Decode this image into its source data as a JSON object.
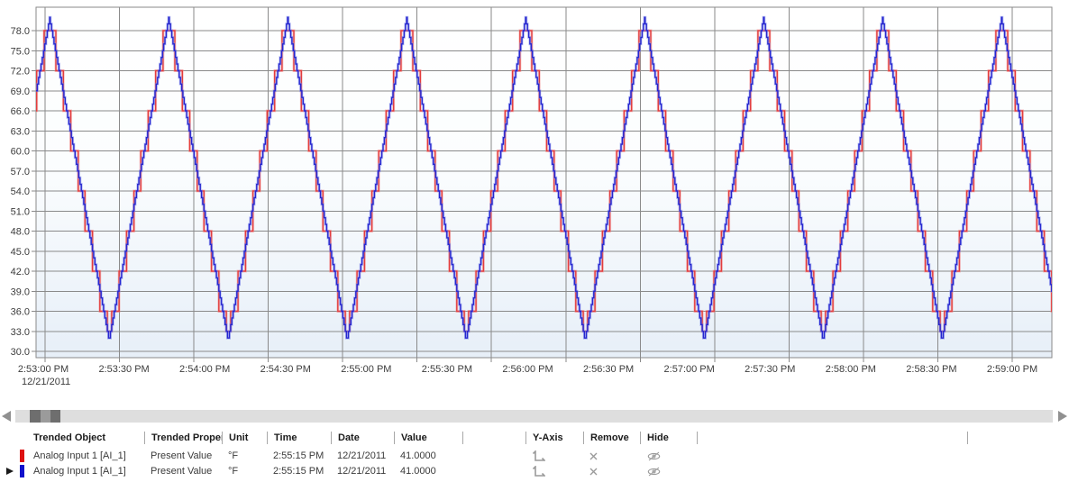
{
  "chart_data": {
    "type": "line",
    "title": "",
    "x_tick_labels": [
      "2:53:00 PM",
      "2:53:30 PM",
      "2:54:00 PM",
      "2:54:30 PM",
      "2:55:00 PM",
      "2:55:30 PM",
      "2:56:00 PM",
      "2:56:30 PM",
      "2:57:00 PM",
      "2:57:30 PM",
      "2:58:00 PM",
      "2:58:30 PM",
      "2:59:00 PM"
    ],
    "x_date_label": "12/21/2011",
    "y_tick_labels": [
      "78.0",
      "75.0",
      "72.0",
      "69.0",
      "66.0",
      "63.0",
      "60.0",
      "57.0",
      "54.0",
      "51.0",
      "48.0",
      "45.0",
      "42.0",
      "39.0",
      "36.0",
      "33.0",
      "30.0"
    ],
    "y_min": 30,
    "y_max": 78,
    "y_step": 3,
    "x_start_time": "2:52:56 PM",
    "x_seconds_span": 410,
    "x_gridline_interval_seconds": 30,
    "grid": true,
    "legend_position": "table-below",
    "plot_bg_top": "#ffffff",
    "plot_bg_bottom": "#e7eff8",
    "gridline_color": "#8a8a8a",
    "axis_text_color": "#3c3c3c",
    "series": [
      {
        "name": "Analog Input 1 [AI_1]",
        "property": "Present Value",
        "unit": "°F",
        "color": "#e23d3d",
        "halo_color": "rgba(244,135,135,0.45)",
        "waveform": "triangle-staircase",
        "min_value": 31,
        "max_value": 80,
        "period_seconds": 48,
        "first_peak_offset_seconds": 5.5,
        "quantize_step": 6,
        "display_min": 33,
        "display_max": 78
      },
      {
        "name": "Analog Input 1 [AI_1]",
        "property": "Present Value",
        "unit": "°F",
        "color": "#2626cf",
        "halo_color": "rgba(128,140,238,0.5)",
        "waveform": "triangle-staircase",
        "min_value": 31.5,
        "max_value": 80,
        "period_seconds": 48,
        "first_peak_offset_seconds": 5.5,
        "quantize_step": 1,
        "display_min": 31.5,
        "display_max": 80
      }
    ]
  },
  "table": {
    "headers": {
      "object": "Trended Object",
      "property": "Trended Property",
      "unit": "Unit",
      "time": "Time",
      "date": "Date",
      "value": "Value",
      "y_axis": "Y-Axis",
      "remove": "Remove",
      "hide": "Hide"
    },
    "rows": [
      {
        "series_color": "#dd1111",
        "selected": false,
        "object": "Analog Input 1 [AI_1]",
        "property": "Present Value",
        "unit": "°F",
        "time": "2:55:15 PM",
        "date": "12/21/2011",
        "value": "41.0000"
      },
      {
        "series_color": "#1111cc",
        "selected": true,
        "object": "Analog Input 1 [AI_1]",
        "property": "Present Value",
        "unit": "°F",
        "time": "2:55:15 PM",
        "date": "12/21/2011",
        "value": "41.0000"
      }
    ]
  }
}
